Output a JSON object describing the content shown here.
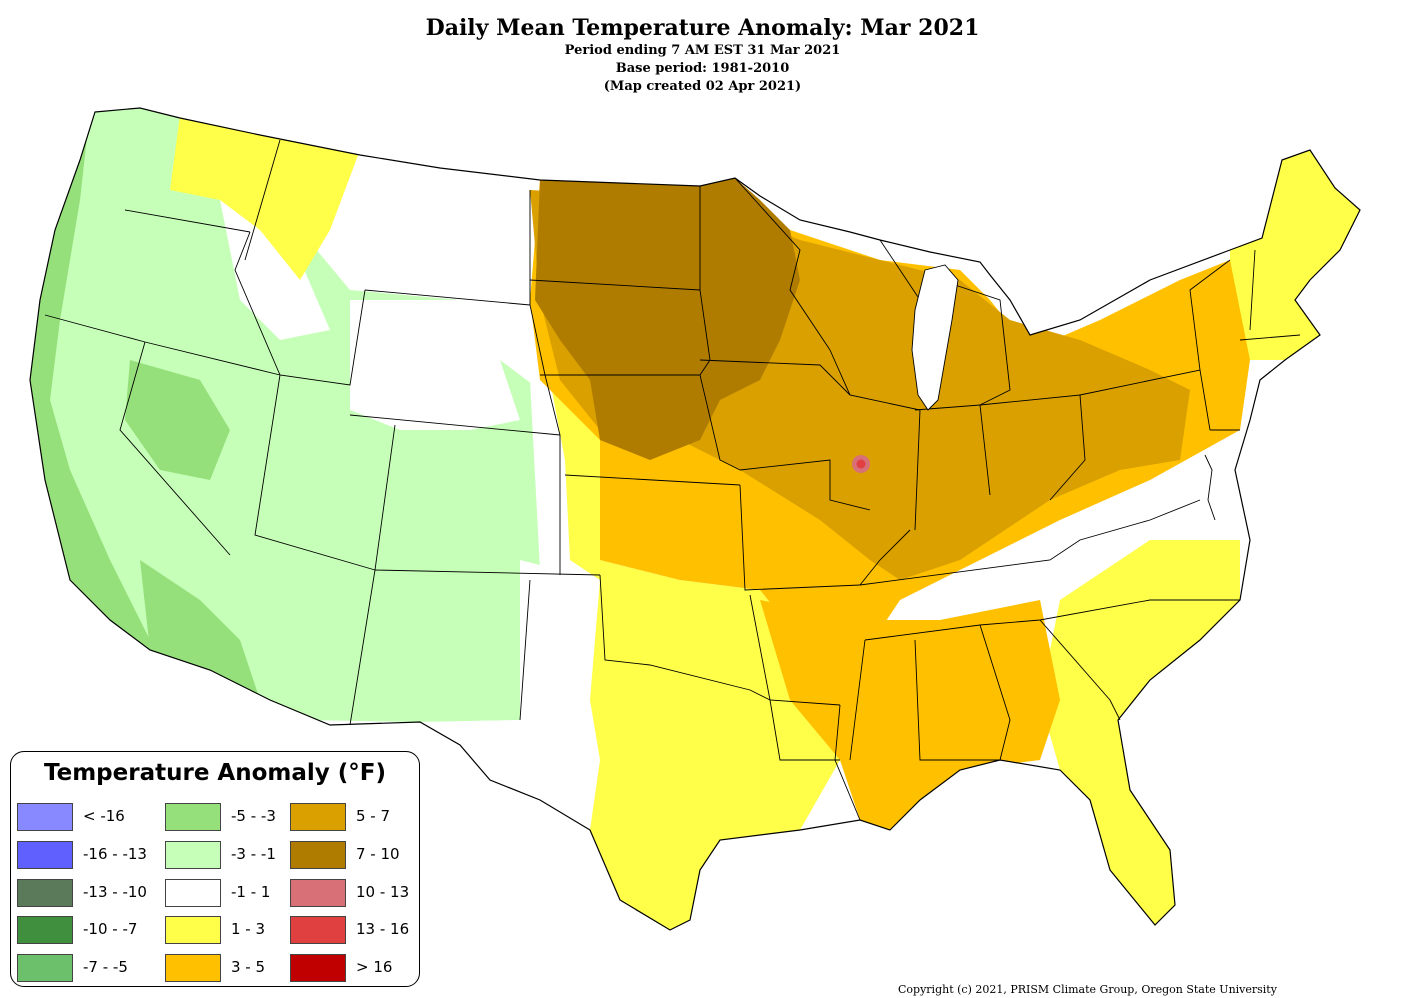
{
  "title": "Daily Mean Temperature Anomaly: Mar 2021",
  "subtitle_lines": [
    "Period ending 7 AM EST 31 Mar 2021",
    "Base period: 1981-2010",
    "(Map created 02 Apr 2021)"
  ],
  "legend": {
    "title": "Temperature Anomaly (°F)",
    "items": [
      {
        "label": "< -16",
        "color": "#8888ff"
      },
      {
        "label": "-16 - -13",
        "color": "#6060ff"
      },
      {
        "label": "-13 - -10",
        "color": "#5a7a5a"
      },
      {
        "label": "-10 - -7",
        "color": "#3f8f3f"
      },
      {
        "label": "-7 - -5",
        "color": "#6cc06c"
      },
      {
        "label": "-5 - -3",
        "color": "#95e07a"
      },
      {
        "label": "-3 - -1",
        "color": "#c6ffb8"
      },
      {
        "label": "-1 - 1",
        "color": "#ffffff"
      },
      {
        "label": "1 - 3",
        "color": "#ffff4a"
      },
      {
        "label": "3 - 5",
        "color": "#ffc000"
      },
      {
        "label": "5 - 7",
        "color": "#d9a000"
      },
      {
        "label": "7 - 10",
        "color": "#b07c00"
      },
      {
        "label": "10 - 13",
        "color": "#d87078"
      },
      {
        "label": "13 - 16",
        "color": "#e04040"
      },
      {
        "label": "> 16",
        "color": "#c00000"
      }
    ]
  },
  "copyright": "Copyright (c) 2021, PRISM Climate Group, Oregon State University"
}
